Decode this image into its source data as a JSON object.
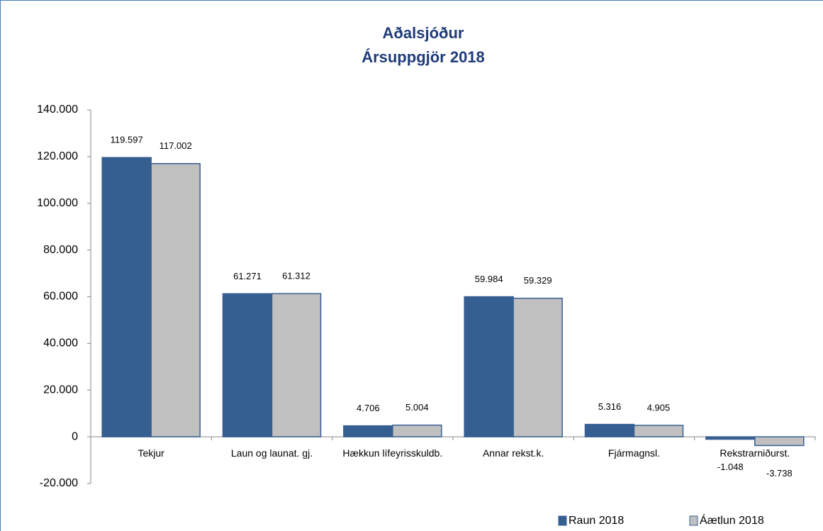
{
  "chart_data": {
    "type": "bar",
    "title": "Aðalsjóður",
    "subtitle": "Ársuppgjör 2018",
    "categories": [
      "Tekjur",
      "Laun og launat. gj.",
      "Hækkun lífeyrisskuldb.",
      "Annar rekst.k.",
      "Fjármagnsl.",
      "Rekstrarniðurst."
    ],
    "series": [
      {
        "name": "Raun 2018",
        "color": "#355f91",
        "values": [
          119597,
          61271,
          4706,
          59984,
          5316,
          -1048
        ],
        "value_labels": [
          "119.597",
          "61.271",
          "4.706",
          "59.984",
          "5.316",
          "-1.048"
        ]
      },
      {
        "name": "Áætlun 2018",
        "color": "#c0c0c0",
        "values": [
          117002,
          61312,
          5004,
          59329,
          4905,
          -3738
        ],
        "value_labels": [
          "117.002",
          "61.312",
          "5.004",
          "59.329",
          "4.905",
          "-3.738"
        ]
      }
    ],
    "ylim": [
      -20000,
      140000
    ],
    "yticks": [
      {
        "value": -20000,
        "label": "-20.000"
      },
      0,
      {
        "value": 20000,
        "label": "20.000"
      },
      {
        "value": 40000,
        "label": "40.000"
      },
      {
        "value": 60000,
        "label": "60.000"
      },
      {
        "value": 80000,
        "label": "80.000"
      },
      {
        "value": 100000,
        "label": "100.000"
      },
      {
        "value": 120000,
        "label": "120.000"
      },
      {
        "value": 140000,
        "label": "140.000"
      }
    ],
    "grid": false,
    "legend": "bottom-right"
  }
}
